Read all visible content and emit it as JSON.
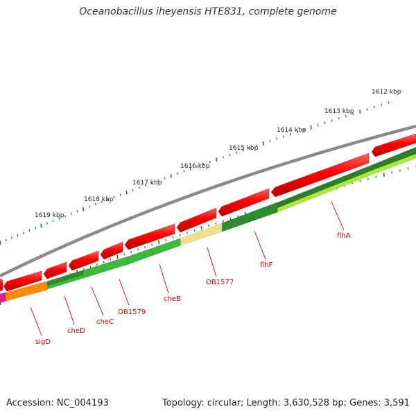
{
  "title": "Oceanobacillus iheyensis HTE831, complete genome",
  "footer": {
    "accession": "Accession: NC_004193",
    "summary": "Topology: circular; Length: 3,630,528 bp; Genes: 3,591"
  },
  "scale_labels": [
    "1612 kbp",
    "1613 kbp",
    "1614 kbp",
    "1615 kbp",
    "1616 kbp",
    "1617 kbp",
    "1618 kbp",
    "1619 kbp"
  ],
  "gene_labels": [
    "flhA",
    "flhF",
    "OB1577",
    "cheB",
    "OB1579",
    "cheC",
    "cheD",
    "sigD"
  ],
  "colors": {
    "backbone": "#808080",
    "forward_gene": "#ff0000",
    "reverse_green_dark": "#2e8b2e",
    "reverse_green_mid": "#3cb83c",
    "reverse_green_light": "#b8ee4a",
    "hypothetical": "#f0e08a",
    "sigma": "#ff8c00",
    "other": "#e0209a",
    "label": "#cc0000",
    "tick": "#1a7a1a"
  }
}
